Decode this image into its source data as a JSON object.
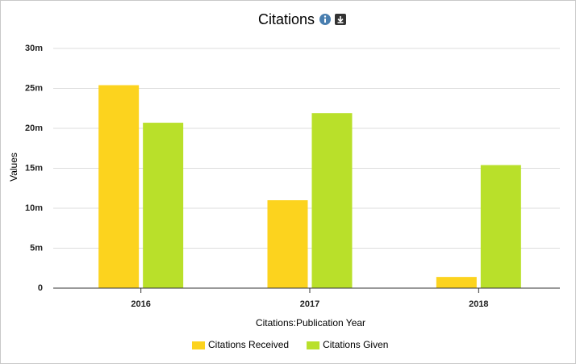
{
  "chart_data": {
    "type": "bar",
    "title": "Citations",
    "x_label": "Citations:Publication Year",
    "y_label": "Values",
    "categories": [
      "2016",
      "2017",
      "2018"
    ],
    "series": [
      {
        "name": "Citations Received",
        "color": "#fcd31e",
        "values": [
          25400000,
          11000000,
          1400000
        ]
      },
      {
        "name": "Citations Given",
        "color": "#b9e02a",
        "values": [
          20700000,
          21900000,
          15400000
        ]
      }
    ],
    "ylim": [
      0,
      30000000
    ],
    "yticks": [
      0,
      {
        "value": 5000000,
        "label": "5m"
      },
      {
        "value": 10000000,
        "label": "10m"
      },
      {
        "value": 15000000,
        "label": "15m"
      },
      {
        "value": 20000000,
        "label": "20m"
      },
      {
        "value": 25000000,
        "label": "25m"
      },
      {
        "value": 30000000,
        "label": "30m"
      }
    ],
    "grid": true,
    "legend": "bottom"
  }
}
